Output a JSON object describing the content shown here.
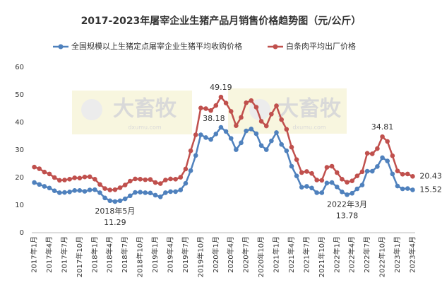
{
  "chart_data": {
    "type": "line",
    "title": "2017-2023年屠宰企业生猪产品月销售价格趋势图（元/公斤）",
    "watermark": "大畜牧",
    "watermark_sub": "dxumu.com",
    "categories": [
      "2017年1月",
      null,
      null,
      "2017年4月",
      null,
      null,
      "2017年7月",
      null,
      null,
      "2017年10月",
      null,
      null,
      "2018年1月",
      null,
      null,
      "2018年4月",
      null,
      null,
      "2018年7月",
      null,
      null,
      "2018年10月",
      null,
      null,
      "2019年1月",
      null,
      null,
      "2019年4月",
      null,
      null,
      "2019年7月",
      null,
      null,
      "2019年10月",
      null,
      null,
      "2020年1月",
      null,
      null,
      "2020年4月",
      null,
      null,
      "2020年7月",
      null,
      null,
      "2020年10月",
      null,
      null,
      "2021年1月",
      null,
      null,
      "2021年4月",
      null,
      null,
      "2021年7月",
      null,
      null,
      "2021年10月",
      null,
      null,
      "2022年1月",
      null,
      null,
      "2022年4月",
      null,
      null,
      "2022年7月",
      null,
      null,
      "2022年10月",
      null,
      null,
      "2023年1月",
      null,
      null,
      "2023年4月"
    ],
    "series": [
      {
        "name": "全国规模以上生猪定点屠宰企业生猪平均收购价格",
        "color": "#4f81bd",
        "values": [
          18.2,
          17.5,
          16.8,
          16.2,
          15.2,
          14.5,
          14.6,
          14.8,
          15.3,
          15.3,
          15.0,
          15.5,
          15.6,
          14.5,
          12.6,
          11.6,
          11.29,
          11.6,
          12.3,
          13.4,
          14.6,
          14.7,
          14.5,
          14.4,
          13.6,
          13.0,
          14.5,
          14.9,
          14.9,
          15.5,
          17.9,
          22.5,
          28.0,
          35.5,
          34.5,
          33.8,
          35.8,
          38.18,
          36.7,
          34.2,
          30.1,
          32.6,
          36.9,
          37.6,
          35.9,
          31.6,
          30.1,
          33.3,
          36.3,
          32.0,
          29.7,
          24.1,
          20.6,
          16.5,
          16.8,
          16.2,
          14.5,
          14.5,
          18.0,
          18.2,
          16.6,
          14.8,
          13.78,
          14.3,
          15.9,
          17.3,
          22.3,
          22.3,
          24.0,
          27.2,
          26.0,
          21.3,
          16.9,
          15.9,
          16.0,
          15.52
        ],
        "value_labels": [
          null,
          null,
          null,
          null,
          null,
          null,
          null,
          null,
          null,
          null,
          null,
          null,
          null,
          null,
          null,
          null,
          "11.29",
          null,
          null,
          null,
          null,
          null,
          null,
          null,
          null,
          null,
          null,
          null,
          null,
          null,
          null,
          null,
          null,
          null,
          null,
          null,
          null,
          "38.18",
          null,
          null,
          null,
          null,
          null,
          null,
          null,
          null,
          null,
          null,
          null,
          null,
          null,
          null,
          null,
          null,
          null,
          null,
          null,
          null,
          null,
          null,
          null,
          null,
          "13.78",
          null,
          null,
          null,
          null,
          null,
          null,
          null,
          null,
          null,
          null,
          null,
          null,
          "15.52"
        ]
      },
      {
        "name": "白条肉平均出厂价格",
        "color": "#c0504d",
        "values": [
          23.8,
          23.2,
          22.0,
          21.3,
          20.0,
          19.0,
          19.1,
          19.4,
          19.9,
          19.8,
          20.2,
          20.3,
          19.4,
          17.5,
          16.0,
          15.5,
          15.6,
          16.3,
          17.3,
          18.7,
          19.5,
          19.4,
          19.2,
          19.3,
          18.2,
          17.8,
          19.1,
          19.5,
          19.4,
          20.1,
          23.1,
          29.7,
          35.5,
          45.2,
          45.0,
          44.3,
          46.1,
          49.19,
          47.0,
          44.0,
          38.8,
          41.8,
          47.1,
          47.9,
          45.5,
          40.4,
          38.7,
          43.0,
          46.0,
          41.0,
          37.5,
          31.0,
          26.5,
          21.8,
          22.2,
          21.5,
          19.1,
          19.0,
          23.7,
          24.1,
          21.8,
          19.4,
          18.3,
          18.8,
          20.6,
          22.1,
          28.8,
          28.6,
          30.5,
          34.81,
          33.1,
          27.9,
          22.4,
          21.2,
          21.3,
          20.43
        ],
        "value_labels": [
          null,
          null,
          null,
          null,
          null,
          null,
          null,
          null,
          null,
          null,
          null,
          null,
          null,
          null,
          null,
          null,
          null,
          null,
          null,
          null,
          null,
          null,
          null,
          null,
          null,
          null,
          null,
          null,
          null,
          null,
          null,
          null,
          null,
          null,
          null,
          null,
          null,
          "49.19",
          null,
          null,
          null,
          null,
          null,
          null,
          null,
          null,
          null,
          null,
          null,
          null,
          null,
          null,
          null,
          null,
          null,
          null,
          null,
          null,
          null,
          null,
          null,
          null,
          null,
          null,
          null,
          null,
          null,
          null,
          null,
          "34.81",
          null,
          null,
          null,
          null,
          null,
          "20.43"
        ]
      }
    ],
    "annotations": [
      {
        "text": "2018年5月",
        "series": 0,
        "index": 16
      },
      {
        "text": "2022年3月",
        "series": 0,
        "index": 62
      }
    ],
    "ylim": [
      0,
      60
    ],
    "yticks": [
      0,
      10,
      20,
      30,
      40,
      50,
      60
    ],
    "grid": false
  }
}
